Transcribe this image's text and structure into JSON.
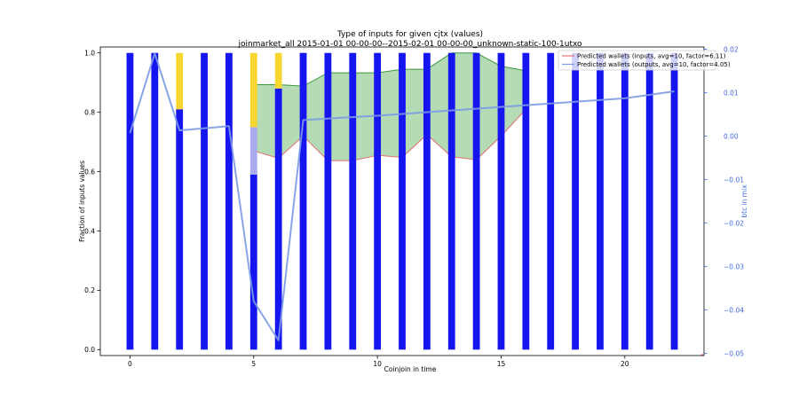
{
  "chart_data": {
    "type": "bar",
    "title": "Type of inputs for given cjtx (values)",
    "subtitle": "joinmarket_all 2015-01-01 00-00-00--2015-02-01 00-00-00_unknown-static-100-1utxo",
    "xlabel": "Coinjoin in time",
    "ylabel": "Fraction of inputs values",
    "y2label": "btc in mix",
    "xlim": [
      -1.2,
      23.2
    ],
    "ylim": [
      -0.02,
      1.02
    ],
    "y2lim": [
      -0.0505,
      0.0205
    ],
    "x_ticks": [
      0,
      5,
      10,
      15,
      20
    ],
    "y_ticks": [
      0.0,
      0.2,
      0.4,
      0.6,
      0.8,
      1.0
    ],
    "y_tick_labels": [
      "0.0",
      "0.2",
      "0.4",
      "0.6",
      "0.8",
      "1.0"
    ],
    "y2_ticks": [
      -0.05,
      -0.04,
      -0.03,
      -0.02,
      -0.01,
      0.0,
      0.01,
      0.02
    ],
    "y2_tick_labels": [
      "−0.05",
      "−0.04",
      "−0.03",
      "−0.02",
      "−0.01",
      "0.00",
      "0.01",
      "0.02"
    ],
    "colors": {
      "blue_bar": "#1515f0",
      "yellow_bar": "#f7d630",
      "lavender_bar": "#aaaaee",
      "fill_green": "#a8d5a8",
      "fill_edge": "#3a9a3a",
      "inputs_line": "#e07070",
      "btc_line": "#7b9be6",
      "right_axis": "#4169e1"
    },
    "bars": [
      {
        "x": 0,
        "segments": [
          {
            "color": "blue",
            "from": 0,
            "to": 1.0
          }
        ]
      },
      {
        "x": 1,
        "segments": [
          {
            "color": "blue",
            "from": 0,
            "to": 1.0
          }
        ]
      },
      {
        "x": 2,
        "segments": [
          {
            "color": "blue",
            "from": 0,
            "to": 0.81
          },
          {
            "color": "yellow",
            "from": 0.81,
            "to": 1.0
          }
        ]
      },
      {
        "x": 3,
        "segments": [
          {
            "color": "blue",
            "from": 0,
            "to": 1.0
          }
        ]
      },
      {
        "x": 4,
        "segments": [
          {
            "color": "blue",
            "from": 0,
            "to": 1.0
          }
        ]
      },
      {
        "x": 5,
        "segments": [
          {
            "color": "blue",
            "from": 0,
            "to": 0.59
          },
          {
            "color": "lavender",
            "from": 0.59,
            "to": 0.75
          },
          {
            "color": "yellow",
            "from": 0.75,
            "to": 1.0
          }
        ]
      },
      {
        "x": 6,
        "segments": [
          {
            "color": "blue",
            "from": 0,
            "to": 0.88
          },
          {
            "color": "yellow",
            "from": 0.88,
            "to": 1.0
          }
        ]
      },
      {
        "x": 7,
        "segments": [
          {
            "color": "blue",
            "from": 0,
            "to": 1.0
          }
        ]
      },
      {
        "x": 8,
        "segments": [
          {
            "color": "blue",
            "from": 0,
            "to": 1.0
          }
        ]
      },
      {
        "x": 9,
        "segments": [
          {
            "color": "blue",
            "from": 0,
            "to": 1.0
          }
        ]
      },
      {
        "x": 10,
        "segments": [
          {
            "color": "blue",
            "from": 0,
            "to": 1.0
          }
        ]
      },
      {
        "x": 11,
        "segments": [
          {
            "color": "blue",
            "from": 0,
            "to": 1.0
          }
        ]
      },
      {
        "x": 12,
        "segments": [
          {
            "color": "blue",
            "from": 0,
            "to": 1.0
          }
        ]
      },
      {
        "x": 13,
        "segments": [
          {
            "color": "blue",
            "from": 0,
            "to": 1.0
          }
        ]
      },
      {
        "x": 14,
        "segments": [
          {
            "color": "blue",
            "from": 0,
            "to": 1.0
          }
        ]
      },
      {
        "x": 15,
        "segments": [
          {
            "color": "blue",
            "from": 0,
            "to": 1.0
          }
        ]
      },
      {
        "x": 16,
        "segments": [
          {
            "color": "blue",
            "from": 0,
            "to": 1.0
          }
        ]
      },
      {
        "x": 17,
        "segments": [
          {
            "color": "blue",
            "from": 0,
            "to": 1.0
          }
        ]
      },
      {
        "x": 18,
        "segments": [
          {
            "color": "blue",
            "from": 0,
            "to": 1.0
          }
        ]
      },
      {
        "x": 19,
        "segments": [
          {
            "color": "blue",
            "from": 0,
            "to": 1.0
          }
        ]
      },
      {
        "x": 20,
        "segments": [
          {
            "color": "blue",
            "from": 0,
            "to": 1.0
          }
        ]
      },
      {
        "x": 21,
        "segments": [
          {
            "color": "blue",
            "from": 0,
            "to": 1.0
          }
        ]
      },
      {
        "x": 22,
        "segments": [
          {
            "color": "blue",
            "from": 0,
            "to": 1.0
          }
        ]
      }
    ],
    "wallet_band": {
      "x": [
        5,
        6,
        7,
        8,
        9,
        10,
        11,
        12,
        13,
        14,
        15,
        16
      ],
      "lower": [
        0.67,
        0.645,
        0.72,
        0.637,
        0.637,
        0.655,
        0.648,
        0.725,
        0.65,
        0.64,
        0.72,
        0.81
      ],
      "upper": [
        0.893,
        0.893,
        0.888,
        0.933,
        0.933,
        0.933,
        0.945,
        0.945,
        1.0,
        1.0,
        0.955,
        0.94
      ]
    },
    "btc_in_mix": {
      "x": [
        0,
        1,
        2,
        4,
        5,
        6,
        7,
        10,
        15,
        20,
        22
      ],
      "y": [
        0.0007,
        0.019,
        0.0013,
        0.0023,
        -0.038,
        -0.047,
        0.0037,
        0.0047,
        0.0067,
        0.0087,
        0.0103
      ]
    },
    "legend": {
      "placement": "top-right",
      "entries": [
        {
          "label": "Predicted wallets (inputs, avg=10, factor=6.11)",
          "color": "#e07070"
        },
        {
          "label": "Predicted wallets (outputs, avg=10, factor=4.05)",
          "color": "#7b9be6"
        }
      ]
    },
    "grid": false
  }
}
